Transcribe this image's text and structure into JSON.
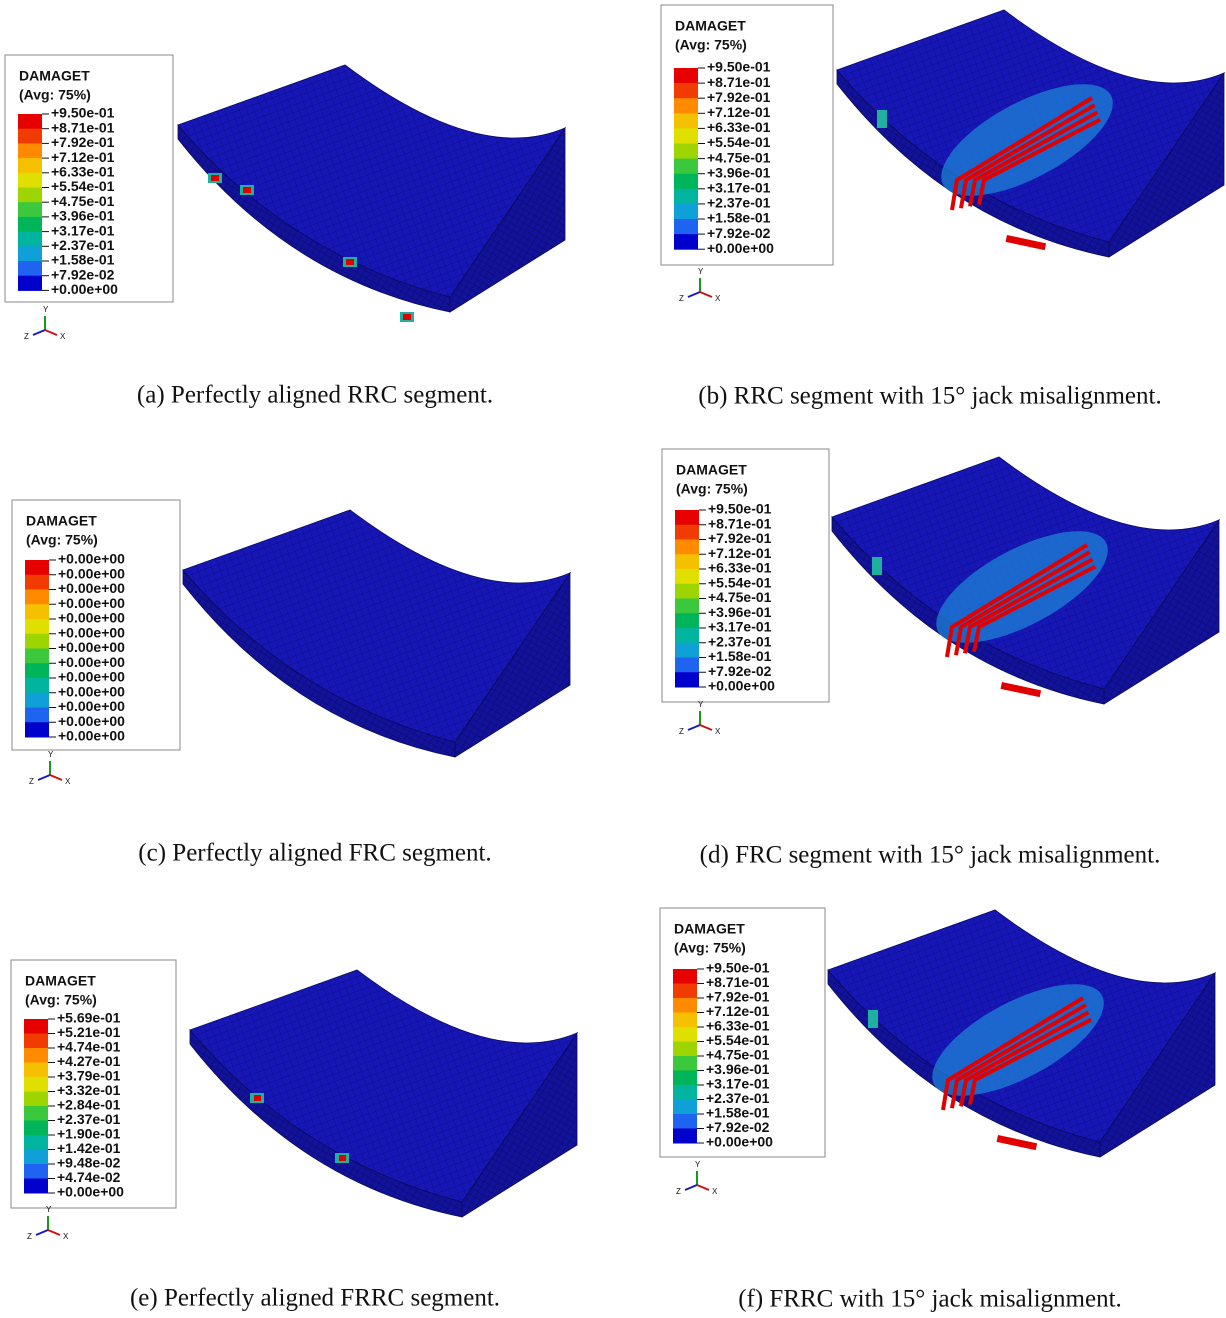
{
  "panels": [
    {
      "legend": {
        "title": "DAMAGET",
        "subtitle": "(Avg: 75%)",
        "labels": [
          "+9.50e-01",
          "+8.71e-01",
          "+7.92e-01",
          "+7.12e-01",
          "+6.33e-01",
          "+5.54e-01",
          "+4.75e-01",
          "+3.96e-01",
          "+3.17e-01",
          "+2.37e-01",
          "+1.58e-01",
          "+7.92e-02",
          "+0.00e+00"
        ]
      },
      "triad": [
        "Y",
        "Z",
        "X"
      ],
      "caption": "(a) Perfectly aligned RRC segment."
    },
    {
      "legend": {
        "title": "DAMAGET",
        "subtitle": "(Avg: 75%)",
        "labels": [
          "+9.50e-01",
          "+8.71e-01",
          "+7.92e-01",
          "+7.12e-01",
          "+6.33e-01",
          "+5.54e-01",
          "+4.75e-01",
          "+3.96e-01",
          "+3.17e-01",
          "+2.37e-01",
          "+1.58e-01",
          "+7.92e-02",
          "+0.00e+00"
        ]
      },
      "triad": [
        "Y",
        "Z",
        "X"
      ],
      "caption": "(b) RRC segment with 15° jack misalignment."
    },
    {
      "legend": {
        "title": "DAMAGET",
        "subtitle": "(Avg: 75%)",
        "labels": [
          "+0.00e+00",
          "+0.00e+00",
          "+0.00e+00",
          "+0.00e+00",
          "+0.00e+00",
          "+0.00e+00",
          "+0.00e+00",
          "+0.00e+00",
          "+0.00e+00",
          "+0.00e+00",
          "+0.00e+00",
          "+0.00e+00",
          "+0.00e+00"
        ]
      },
      "triad": [
        "Y",
        "Z",
        "X"
      ],
      "caption": "(c) Perfectly aligned FRC segment."
    },
    {
      "legend": {
        "title": "DAMAGET",
        "subtitle": "(Avg: 75%)",
        "labels": [
          "+9.50e-01",
          "+8.71e-01",
          "+7.92e-01",
          "+7.12e-01",
          "+6.33e-01",
          "+5.54e-01",
          "+4.75e-01",
          "+3.96e-01",
          "+3.17e-01",
          "+2.37e-01",
          "+1.58e-01",
          "+7.92e-02",
          "+0.00e+00"
        ]
      },
      "triad": [
        "Y",
        "Z",
        "X"
      ],
      "caption": "(d) FRC segment with 15° jack misalignment."
    },
    {
      "legend": {
        "title": "DAMAGET",
        "subtitle": "(Avg: 75%)",
        "labels": [
          "+5.69e-01",
          "+5.21e-01",
          "+4.74e-01",
          "+4.27e-01",
          "+3.79e-01",
          "+3.32e-01",
          "+2.84e-01",
          "+2.37e-01",
          "+1.90e-01",
          "+1.42e-01",
          "+9.48e-02",
          "+4.74e-02",
          "+0.00e+00"
        ]
      },
      "triad": [
        "Y",
        "Z",
        "X"
      ],
      "caption": "(e) Perfectly aligned FRRC segment."
    },
    {
      "legend": {
        "title": "DAMAGET",
        "subtitle": "(Avg: 75%)",
        "labels": [
          "+9.50e-01",
          "+8.71e-01",
          "+7.92e-01",
          "+7.12e-01",
          "+6.33e-01",
          "+5.54e-01",
          "+4.75e-01",
          "+3.96e-01",
          "+3.17e-01",
          "+2.37e-01",
          "+1.58e-01",
          "+7.92e-02",
          "+0.00e+00"
        ]
      },
      "triad": [
        "Y",
        "Z",
        "X"
      ],
      "caption": "(f) FRRC with 15° jack misalignment."
    }
  ]
}
